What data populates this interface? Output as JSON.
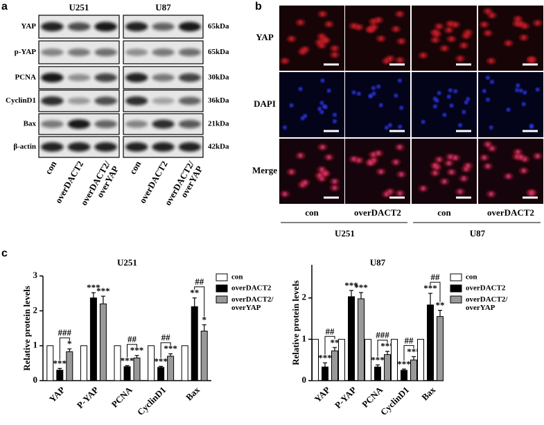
{
  "panel_a": {
    "label": "a",
    "groups": [
      "U251",
      "U87"
    ],
    "rows": [
      {
        "protein": "YAP",
        "size": "65kDa"
      },
      {
        "protein": "p-YAP",
        "size": "65kDa"
      },
      {
        "protein": "PCNA",
        "size": "30kDa"
      },
      {
        "protein": "CyclinD1",
        "size": "36kDa"
      },
      {
        "protein": "Bax",
        "size": "21kDa"
      },
      {
        "protein": "β-actin",
        "size": "42kDa"
      }
    ],
    "lanes": [
      "con",
      "overDACT2",
      "overDACT2/overYAP"
    ]
  },
  "panel_b": {
    "label": "b",
    "rows": [
      "YAP",
      "DAPI",
      "Merge"
    ],
    "columns": [
      "con",
      "overDACT2"
    ],
    "groups": [
      "U251",
      "U87"
    ]
  },
  "panel_c": {
    "label": "c"
  },
  "chart_data": [
    {
      "type": "bar",
      "title": "U251",
      "y_label": "Relative protein levels",
      "categories": [
        "YAP",
        "P-YAP",
        "PCNA",
        "CyclinD1",
        "Bax"
      ],
      "series": [
        {
          "name": "con",
          "color": "#ffffff",
          "values": [
            1,
            1,
            1,
            1,
            1
          ]
        },
        {
          "name": "overDACT2",
          "color": "#000000",
          "values": [
            0.3,
            2.37,
            0.4,
            0.38,
            2.12
          ],
          "errors": [
            0.05,
            0.15,
            0.03,
            0.03,
            0.25
          ],
          "significance": [
            "***",
            "***",
            "***",
            "***",
            "**"
          ]
        },
        {
          "name": "overDACT2/overYAP",
          "color": "#999999",
          "values": [
            0.83,
            2.2,
            0.65,
            0.7,
            1.42
          ],
          "errors": [
            0.08,
            0.22,
            0.07,
            0.07,
            0.18
          ],
          "significance": [
            "*",
            "***",
            "***",
            "***",
            "*"
          ]
        }
      ],
      "comparisons": [
        "###",
        null,
        "##",
        "##",
        "##"
      ],
      "ylim": [
        0,
        3
      ],
      "yticks": [
        0,
        1,
        2,
        3
      ]
    },
    {
      "type": "bar",
      "title": "U87",
      "y_label": "Relative protein levels",
      "categories": [
        "YAP",
        "P-YAP",
        "PCNA",
        "CyclinD1",
        "Bax"
      ],
      "series": [
        {
          "name": "con",
          "color": "#ffffff",
          "values": [
            1,
            1,
            1,
            1,
            1
          ]
        },
        {
          "name": "overDACT2",
          "color": "#000000",
          "values": [
            0.33,
            2.03,
            0.33,
            0.25,
            1.83
          ],
          "errors": [
            0.1,
            0.15,
            0.05,
            0.03,
            0.28
          ],
          "significance": [
            "***",
            "***",
            "***",
            "***",
            "***"
          ]
        },
        {
          "name": "overDACT2/overYAP",
          "color": "#999999",
          "values": [
            0.72,
            1.98,
            0.63,
            0.5,
            1.55
          ],
          "errors": [
            0.08,
            0.15,
            0.08,
            0.08,
            0.15
          ],
          "significance": [
            "**",
            "***",
            "***",
            "***",
            "**"
          ]
        }
      ],
      "comparisons": [
        "##",
        null,
        "###",
        "##",
        "##"
      ],
      "ylim": [
        0,
        2.8
      ],
      "yticks": [
        0,
        1,
        2
      ]
    }
  ]
}
